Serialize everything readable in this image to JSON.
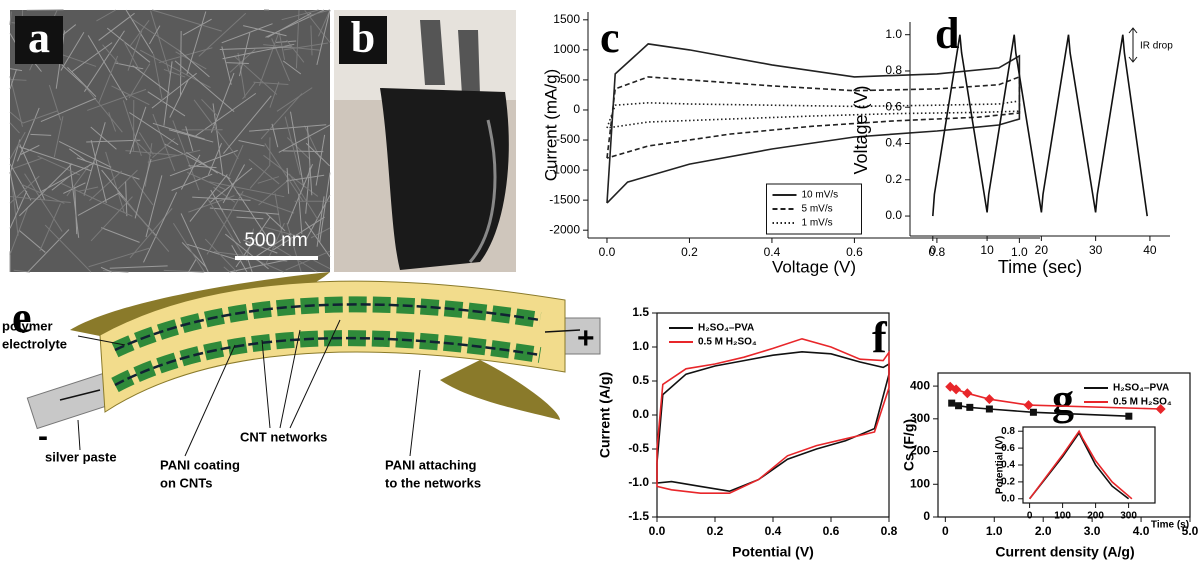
{
  "panels": {
    "a": {
      "label": "a",
      "scale_bar": "500 nm"
    },
    "b": {
      "label": "b"
    }
  },
  "diagram": {
    "label": "e",
    "polymer_electrolyte": [
      "polymer",
      "electrolyte"
    ],
    "silver_paste": "silver paste",
    "minus": "-",
    "plus": "+",
    "cnt_networks": "CNT networks",
    "pani_coating": [
      "PANI coating",
      "on CNTs"
    ],
    "pani_attaching": [
      "PANI attaching",
      "to the networks"
    ]
  },
  "chart_data": [
    {
      "type": "line",
      "label": "c",
      "x_label": "Voltage (V)",
      "y_label": "Current (mA/g)",
      "xlim": [
        -0.046,
        1.05
      ],
      "ylim": [
        -2130,
        1630
      ],
      "xticks": [
        {
          "value": 0,
          "label": "0.0"
        },
        0.2,
        0.4,
        0.6,
        0.8,
        {
          "value": 1,
          "label": "1.0"
        }
      ],
      "yticks": [
        1500,
        1000,
        500,
        0,
        -500,
        -1000,
        -1500,
        -2000
      ],
      "frame": false,
      "legend": "lower center",
      "series": [
        {
          "name": "10 mV/s",
          "color": "#222222",
          "dash": "solid",
          "x": [
            0,
            0.02,
            0.1,
            0.2,
            0.4,
            0.6,
            0.8,
            0.95,
            1,
            1,
            0.95,
            0.8,
            0.6,
            0.4,
            0.2,
            0.05,
            0
          ],
          "values": [
            -1550,
            600,
            1100,
            1000,
            750,
            550,
            600,
            700,
            900,
            -150,
            -250,
            -350,
            -450,
            -650,
            -900,
            -1200,
            -1550
          ]
        },
        {
          "name": "5 mV/s",
          "color": "#222222",
          "dash": "dashed",
          "x": [
            0,
            0.02,
            0.1,
            0.2,
            0.4,
            0.6,
            0.8,
            0.95,
            1,
            1,
            0.9,
            0.7,
            0.5,
            0.3,
            0.1,
            0
          ],
          "values": [
            -800,
            350,
            550,
            500,
            400,
            320,
            350,
            420,
            550,
            -50,
            -120,
            -180,
            -270,
            -400,
            -600,
            -800
          ]
        },
        {
          "name": "1 mV/s",
          "color": "#222222",
          "dash": "dotted",
          "x": [
            0,
            0.02,
            0.1,
            0.2,
            0.4,
            0.6,
            0.8,
            0.95,
            1,
            1,
            0.9,
            0.7,
            0.5,
            0.3,
            0.1,
            0
          ],
          "values": [
            -300,
            80,
            120,
            100,
            80,
            60,
            80,
            100,
            150,
            -20,
            -40,
            -60,
            -100,
            -150,
            -200,
            -300
          ]
        }
      ]
    },
    {
      "type": "line",
      "label": "d",
      "x_label": "Time (sec)",
      "y_label": "Voltage (V)",
      "annotation": "IR drop",
      "xlim": [
        -4.2,
        43.7
      ],
      "ylim": [
        -0.11,
        1.07
      ],
      "xticks": [
        0,
        10,
        20,
        30,
        40
      ],
      "yticks": [
        {
          "value": 0,
          "label": "0.0"
        },
        0.2,
        0.4,
        0.6,
        0.8,
        {
          "value": 1,
          "label": "1.0"
        }
      ],
      "frame": false,
      "series": [
        {
          "color": "#111111",
          "dash": "solid",
          "x": [
            0,
            0.3,
            5,
            5.3,
            10,
            10.3,
            15,
            15.3,
            20,
            20.3,
            25,
            25.3,
            30,
            30.3,
            35,
            35.3,
            39.5
          ],
          "values": [
            0,
            0.12,
            1,
            0.9,
            0.02,
            0.12,
            1,
            0.9,
            0.02,
            0.12,
            1,
            0.9,
            0.02,
            0.12,
            1,
            0.9,
            0
          ]
        }
      ]
    },
    {
      "type": "line",
      "label": "f",
      "x_label": "Potential (V)",
      "y_label": "Current (A/g)",
      "xlim": [
        0,
        0.8
      ],
      "ylim": [
        -1.5,
        1.5
      ],
      "xticks": [
        {
          "value": 0,
          "label": "0.0"
        },
        0.2,
        0.4,
        0.6,
        0.8
      ],
      "yticks": [
        -1.5,
        {
          "value": -1,
          "label": "-1.0"
        },
        -0.5,
        {
          "value": 0,
          "label": "0.0"
        },
        0.5,
        {
          "value": 1,
          "label": "1.0"
        },
        1.5
      ],
      "frame": true,
      "legend": "upper left",
      "series": [
        {
          "name": "H₂SO₄–PVA",
          "color": "#111111",
          "dash": "solid",
          "x": [
            0,
            0.02,
            0.1,
            0.2,
            0.3,
            0.4,
            0.5,
            0.6,
            0.7,
            0.78,
            0.8,
            0.8,
            0.75,
            0.65,
            0.55,
            0.45,
            0.35,
            0.25,
            0.15,
            0.05,
            0,
            0
          ],
          "values": [
            -0.7,
            0.3,
            0.6,
            0.72,
            0.8,
            0.88,
            0.93,
            0.9,
            0.78,
            0.7,
            0.75,
            0.6,
            -0.2,
            -0.38,
            -0.5,
            -0.65,
            -0.95,
            -1.12,
            -1.05,
            -0.98,
            -1,
            -0.7
          ]
        },
        {
          "name": "0.5 M H₂SO₄",
          "color": "#e8262a",
          "dash": "solid",
          "x": [
            0,
            0.02,
            0.1,
            0.2,
            0.3,
            0.4,
            0.5,
            0.6,
            0.7,
            0.78,
            0.8,
            0.8,
            0.75,
            0.65,
            0.55,
            0.45,
            0.35,
            0.25,
            0.15,
            0.05,
            0,
            0
          ],
          "values": [
            -0.5,
            0.45,
            0.68,
            0.75,
            0.85,
            0.98,
            1.12,
            1,
            0.82,
            0.8,
            0.92,
            0.4,
            -0.25,
            -0.35,
            -0.45,
            -0.6,
            -0.95,
            -1.15,
            -1.15,
            -1.1,
            -1.05,
            -0.5
          ]
        }
      ]
    },
    {
      "type": "line",
      "label": "g",
      "x_label": "Current density (A/g)",
      "y_label": "Cs (F/g)",
      "xlim": [
        -0.15,
        5
      ],
      "ylim": [
        0,
        440
      ],
      "xticks": [
        0,
        {
          "value": 1,
          "label": "1.0"
        },
        {
          "value": 2,
          "label": "2.0"
        },
        {
          "value": 3,
          "label": "3.0"
        },
        {
          "value": 4,
          "label": "4.0"
        },
        {
          "value": 5,
          "label": "5.0"
        }
      ],
      "yticks": [
        0,
        100,
        200,
        300,
        400
      ],
      "frame": true,
      "legend": "upper right",
      "series": [
        {
          "name": "H₂SO₄–PVA",
          "color": "#111111",
          "dash": "solid",
          "marker": "square",
          "x": [
            0.13,
            0.27,
            0.5,
            0.9,
            1.8,
            3.75
          ],
          "values": [
            348,
            340,
            335,
            330,
            320,
            308
          ]
        },
        {
          "name": "0.5 M H₂SO₄",
          "color": "#e8262a",
          "dash": "solid",
          "marker": "diamond",
          "x": [
            0.1,
            0.22,
            0.45,
            0.9,
            1.7,
            4.4
          ],
          "values": [
            398,
            390,
            378,
            360,
            342,
            330
          ]
        }
      ]
    },
    {
      "type": "line",
      "x_label": "Time (s)",
      "y_label": "Potential (V)",
      "xlim": [
        -20,
        380
      ],
      "ylim": [
        -0.05,
        0.85
      ],
      "xticks": [
        0,
        100,
        200,
        300
      ],
      "yticks": [
        {
          "value": 0,
          "label": "0.0"
        },
        0.2,
        0.4,
        0.6,
        0.8
      ],
      "frame": true,
      "series": [
        {
          "color": "#111111",
          "dash": "solid",
          "x": [
            0,
            50,
            100,
            150,
            160,
            200,
            250,
            300
          ],
          "values": [
            0,
            0.25,
            0.5,
            0.78,
            0.7,
            0.4,
            0.15,
            0
          ]
        },
        {
          "color": "#e8262a",
          "dash": "solid",
          "x": [
            0,
            50,
            100,
            150,
            160,
            200,
            250,
            310
          ],
          "values": [
            0,
            0.26,
            0.52,
            0.8,
            0.72,
            0.45,
            0.2,
            0
          ]
        }
      ]
    }
  ]
}
